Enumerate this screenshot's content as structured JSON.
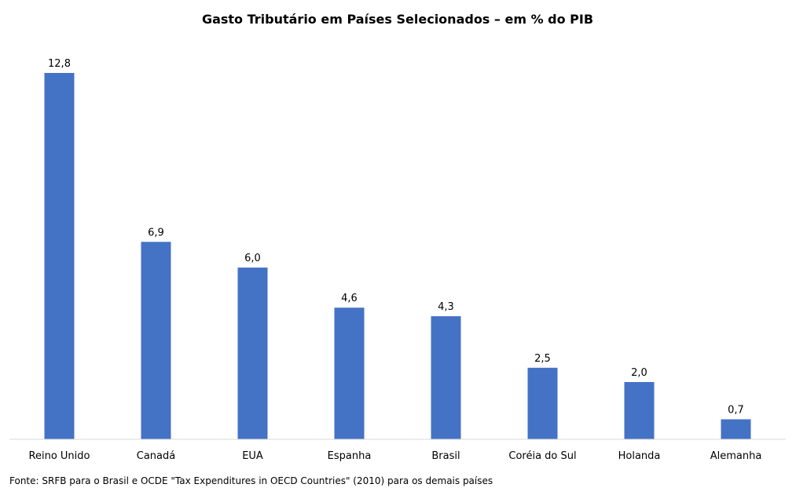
{
  "chart_data": {
    "type": "bar",
    "title": "Gasto Tributário  em Países Selecionados – em % do PIB",
    "xlabel": "",
    "ylabel": "",
    "categories": [
      "Reino Unido",
      "Canadá",
      "EUA",
      "Espanha",
      "Brasil",
      "Coréia do Sul",
      "Holanda",
      "Alemanha"
    ],
    "values": [
      12.8,
      6.9,
      6.0,
      4.6,
      4.3,
      2.5,
      2.0,
      0.7
    ],
    "value_labels": [
      "12,8",
      "6,9",
      "6,0",
      "4,6",
      "4,3",
      "2,5",
      "2,0",
      "0,7"
    ],
    "ylim": [
      0,
      12.8
    ],
    "bar_color": "#4472C4",
    "grid": false,
    "legend": "none"
  },
  "source_note": "Fonte: SRFB para o Brasil e OCDE \"Tax Expenditures in OECD Countries\" (2010) para os demais países"
}
